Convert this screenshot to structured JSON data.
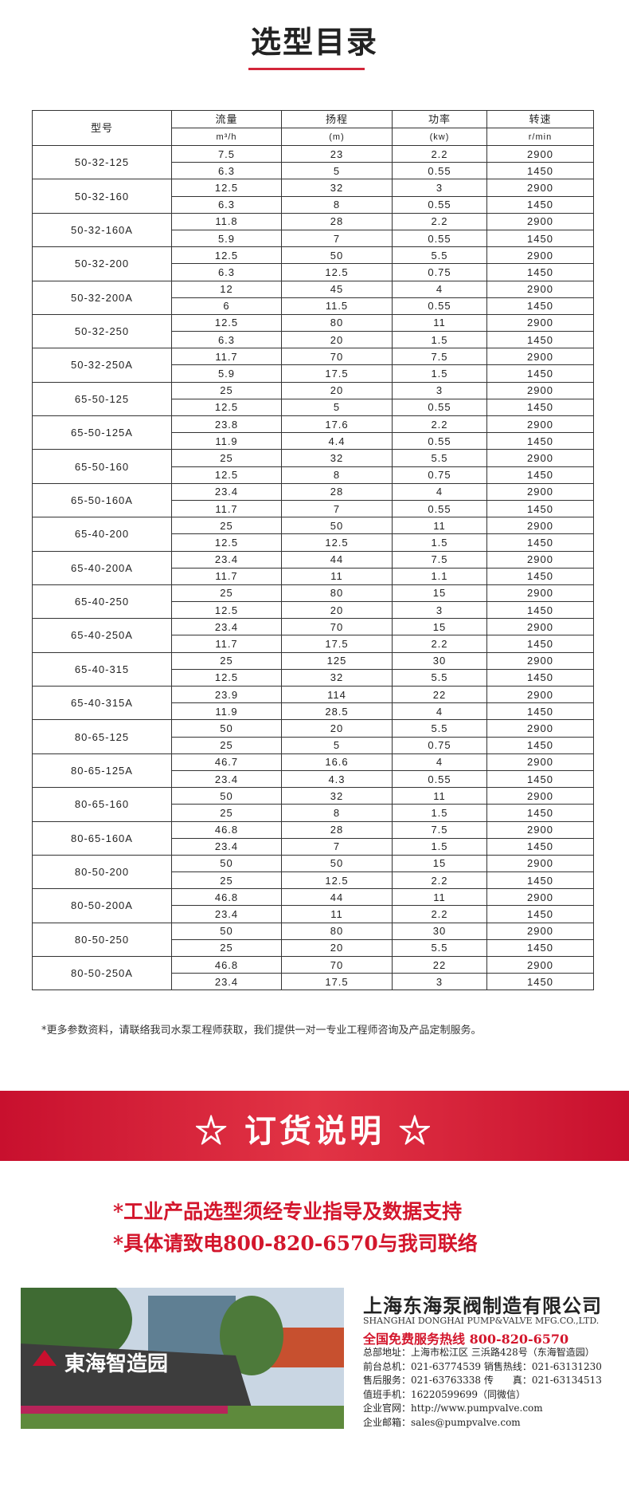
{
  "header": {
    "title": "选型目录"
  },
  "table": {
    "header": [
      {
        "label": "型号"
      },
      {
        "label": "流量",
        "unit": "m³/h"
      },
      {
        "label": "扬程",
        "unit": "(m)"
      },
      {
        "label": "功率",
        "unit": "(kw)"
      },
      {
        "label": "转速",
        "unit": "r/min"
      }
    ],
    "rows": [
      {
        "model": "50-32-125",
        "specs": [
          [
            "7.5",
            "23",
            "2.2",
            "2900"
          ],
          [
            "6.3",
            "5",
            "0.55",
            "1450"
          ]
        ]
      },
      {
        "model": "50-32-160",
        "specs": [
          [
            "12.5",
            "32",
            "3",
            "2900"
          ],
          [
            "6.3",
            "8",
            "0.55",
            "1450"
          ]
        ]
      },
      {
        "model": "50-32-160A",
        "specs": [
          [
            "11.8",
            "28",
            "2.2",
            "2900"
          ],
          [
            "5.9",
            "7",
            "0.55",
            "1450"
          ]
        ]
      },
      {
        "model": "50-32-200",
        "specs": [
          [
            "12.5",
            "50",
            "5.5",
            "2900"
          ],
          [
            "6.3",
            "12.5",
            "0.75",
            "1450"
          ]
        ]
      },
      {
        "model": "50-32-200A",
        "specs": [
          [
            "12",
            "45",
            "4",
            "2900"
          ],
          [
            "6",
            "11.5",
            "0.55",
            "1450"
          ]
        ]
      },
      {
        "model": "50-32-250",
        "specs": [
          [
            "12.5",
            "80",
            "11",
            "2900"
          ],
          [
            "6.3",
            "20",
            "1.5",
            "1450"
          ]
        ]
      },
      {
        "model": "50-32-250A",
        "specs": [
          [
            "11.7",
            "70",
            "7.5",
            "2900"
          ],
          [
            "5.9",
            "17.5",
            "1.5",
            "1450"
          ]
        ]
      },
      {
        "model": "65-50-125",
        "specs": [
          [
            "25",
            "20",
            "3",
            "2900"
          ],
          [
            "12.5",
            "5",
            "0.55",
            "1450"
          ]
        ]
      },
      {
        "model": "65-50-125A",
        "specs": [
          [
            "23.8",
            "17.6",
            "2.2",
            "2900"
          ],
          [
            "11.9",
            "4.4",
            "0.55",
            "1450"
          ]
        ]
      },
      {
        "model": "65-50-160",
        "specs": [
          [
            "25",
            "32",
            "5.5",
            "2900"
          ],
          [
            "12.5",
            "8",
            "0.75",
            "1450"
          ]
        ]
      },
      {
        "model": "65-50-160A",
        "specs": [
          [
            "23.4",
            "28",
            "4",
            "2900"
          ],
          [
            "11.7",
            "7",
            "0.55",
            "1450"
          ]
        ]
      },
      {
        "model": "65-40-200",
        "specs": [
          [
            "25",
            "50",
            "11",
            "2900"
          ],
          [
            "12.5",
            "12.5",
            "1.5",
            "1450"
          ]
        ]
      },
      {
        "model": "65-40-200A",
        "specs": [
          [
            "23.4",
            "44",
            "7.5",
            "2900"
          ],
          [
            "11.7",
            "11",
            "1.1",
            "1450"
          ]
        ]
      },
      {
        "model": "65-40-250",
        "specs": [
          [
            "25",
            "80",
            "15",
            "2900"
          ],
          [
            "12.5",
            "20",
            "3",
            "1450"
          ]
        ]
      },
      {
        "model": "65-40-250A",
        "specs": [
          [
            "23.4",
            "70",
            "15",
            "2900"
          ],
          [
            "11.7",
            "17.5",
            "2.2",
            "1450"
          ]
        ]
      },
      {
        "model": "65-40-315",
        "specs": [
          [
            "25",
            "125",
            "30",
            "2900"
          ],
          [
            "12.5",
            "32",
            "5.5",
            "1450"
          ]
        ]
      },
      {
        "model": "65-40-315A",
        "specs": [
          [
            "23.9",
            "114",
            "22",
            "2900"
          ],
          [
            "11.9",
            "28.5",
            "4",
            "1450"
          ]
        ]
      },
      {
        "model": "80-65-125",
        "specs": [
          [
            "50",
            "20",
            "5.5",
            "2900"
          ],
          [
            "25",
            "5",
            "0.75",
            "1450"
          ]
        ]
      },
      {
        "model": "80-65-125A",
        "specs": [
          [
            "46.7",
            "16.6",
            "4",
            "2900"
          ],
          [
            "23.4",
            "4.3",
            "0.55",
            "1450"
          ]
        ]
      },
      {
        "model": "80-65-160",
        "specs": [
          [
            "50",
            "32",
            "11",
            "2900"
          ],
          [
            "25",
            "8",
            "1.5",
            "1450"
          ]
        ]
      },
      {
        "model": "80-65-160A",
        "specs": [
          [
            "46.8",
            "28",
            "7.5",
            "2900"
          ],
          [
            "23.4",
            "7",
            "1.5",
            "1450"
          ]
        ]
      },
      {
        "model": "80-50-200",
        "specs": [
          [
            "50",
            "50",
            "15",
            "2900"
          ],
          [
            "25",
            "12.5",
            "2.2",
            "1450"
          ]
        ]
      },
      {
        "model": "80-50-200A",
        "specs": [
          [
            "46.8",
            "44",
            "11",
            "2900"
          ],
          [
            "23.4",
            "11",
            "2.2",
            "1450"
          ]
        ]
      },
      {
        "model": "80-50-250",
        "specs": [
          [
            "50",
            "80",
            "30",
            "2900"
          ],
          [
            "25",
            "20",
            "5.5",
            "1450"
          ]
        ]
      },
      {
        "model": "80-50-250A",
        "specs": [
          [
            "46.8",
            "70",
            "22",
            "2900"
          ],
          [
            "23.4",
            "17.5",
            "3",
            "1450"
          ]
        ]
      }
    ]
  },
  "note": "*更多参数资料，请联络我司水泵工程师获取，我们提供一对一专业工程师咨询及产品定制服务。",
  "order": {
    "title": "☆ 订货说明 ☆",
    "lines": [
      "*工业产品选型须经专业指导及数据支持",
      "*具体请致电800-820-6570与我司联络"
    ]
  },
  "company": {
    "sign": "東海智造园",
    "name": "上海东海泵阀制造有限公司",
    "name_en": "SHANGHAI DONGHAI PUMP&VALVE MFG.CO.,LTD.",
    "hotline": "全国免费服务热线  800-820-6570",
    "details": [
      "总部地址：上海市松江区 三浜路428号（东海智造园）",
      "前台总机：021-63774539  销售热线：021-63131230",
      "售后服务：021-63763338  传　　真：021-63134513",
      "值班手机：16220599699（同微信）",
      "企业官网：http://www.pumpvalve.com",
      "企业邮箱：sales@pumpvalve.com"
    ]
  }
}
